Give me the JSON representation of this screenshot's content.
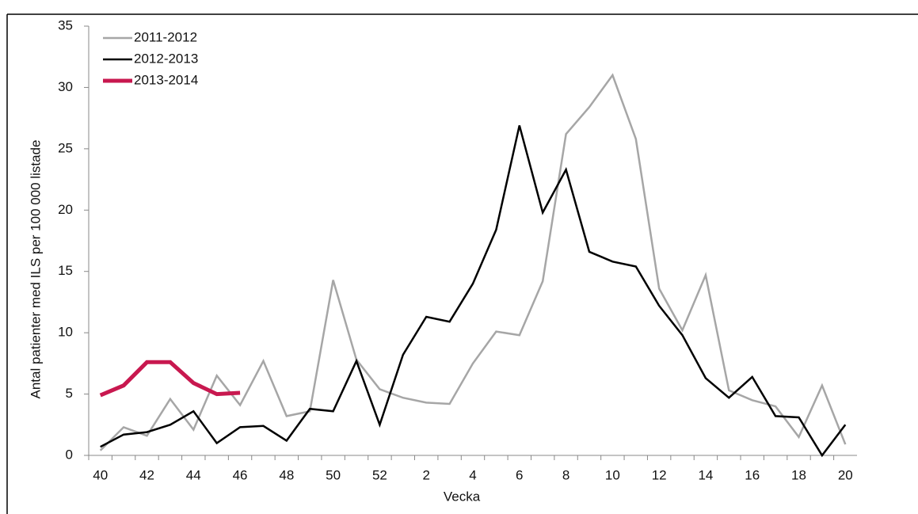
{
  "chart_data": {
    "type": "line",
    "x_label": "Vecka",
    "y_label": "Antal patienter med ILS per 100 000 listade",
    "categories": [
      "40",
      null,
      "42",
      null,
      "44",
      null,
      "46",
      null,
      "48",
      null,
      "50",
      null,
      "52",
      null,
      "2",
      null,
      "4",
      null,
      "6",
      null,
      "8",
      null,
      "10",
      null,
      "12",
      null,
      "14",
      null,
      "16",
      null,
      "18",
      null,
      "20"
    ],
    "series": [
      {
        "name": "2011-2012",
        "color": "#a6a6a6",
        "width": 2.5,
        "values": [
          0.4,
          2.3,
          1.6,
          4.6,
          2.1,
          6.5,
          4.1,
          7.7,
          3.2,
          3.6,
          14.3,
          7.8,
          5.4,
          4.7,
          4.3,
          4.2,
          7.5,
          10.1,
          9.8,
          14.2,
          26.2,
          28.4,
          31.0,
          25.8,
          13.6,
          10.2,
          14.7,
          5.3,
          4.5,
          4.0,
          1.5,
          5.7,
          0.9
        ]
      },
      {
        "name": "2012-2013",
        "color": "#000000",
        "width": 2.5,
        "values": [
          0.7,
          1.7,
          1.9,
          2.5,
          3.6,
          1.0,
          2.3,
          2.4,
          1.2,
          3.8,
          3.6,
          7.7,
          2.5,
          8.2,
          11.3,
          10.9,
          14.0,
          18.4,
          26.9,
          19.8,
          23.3,
          16.6,
          15.8,
          15.4,
          12.2,
          9.8,
          6.3,
          4.7,
          6.4,
          3.2,
          3.1,
          0.0,
          2.5
        ]
      },
      {
        "name": "2013-2014",
        "color": "#c8184f",
        "width": 5,
        "values": [
          4.9,
          5.7,
          7.6,
          7.6,
          5.9,
          5.0,
          5.1,
          null,
          null,
          null,
          null,
          null,
          null,
          null,
          null,
          null,
          null,
          null,
          null,
          null,
          null,
          null,
          null,
          null,
          null,
          null,
          null,
          null,
          null,
          null,
          null,
          null,
          null
        ]
      }
    ],
    "ylim": [
      0,
      35
    ],
    "yticks": [
      0,
      5,
      10,
      15,
      20,
      25,
      30,
      35
    ],
    "grid": false,
    "legend": "upper-left"
  }
}
